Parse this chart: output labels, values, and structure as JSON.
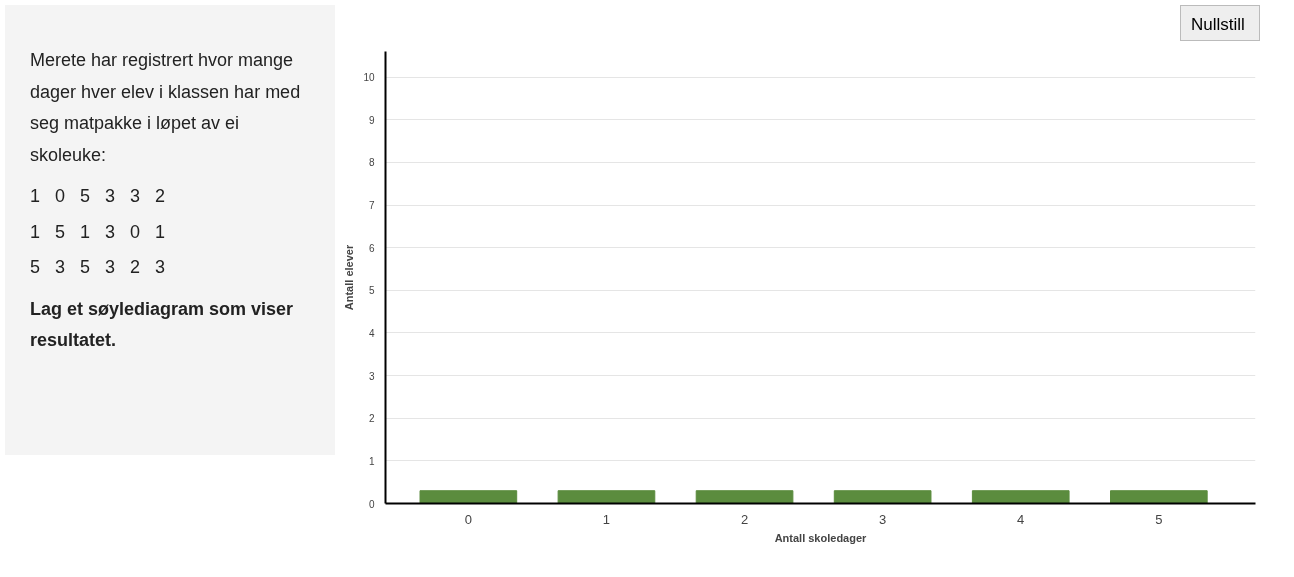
{
  "chart_data": {
    "type": "bar",
    "xlabel": "Antall skoledager",
    "ylabel": "Antall elever",
    "categories": [
      "0",
      "1",
      "2",
      "3",
      "4",
      "5"
    ],
    "values": [
      0.3,
      0.3,
      0.3,
      0.3,
      0.3,
      0.3
    ],
    "color": "#5b8c3e",
    "ylim": [
      0,
      10.6
    ],
    "yticks": [
      0,
      1,
      2,
      3,
      4,
      5,
      6,
      7,
      8,
      9,
      10
    ],
    "grid": "y",
    "annotations": [
      "Merete har registrert hvor mange dager hver elev i klassen har med seg matpakke i løpet av ei skoleuke:",
      "1   0   5   3   3   2",
      "1   5   1   3   0   1",
      "5   3   5   3   2   3",
      "Lag et søylediagram som viser resultatet.",
      "Nullstill"
    ]
  }
}
